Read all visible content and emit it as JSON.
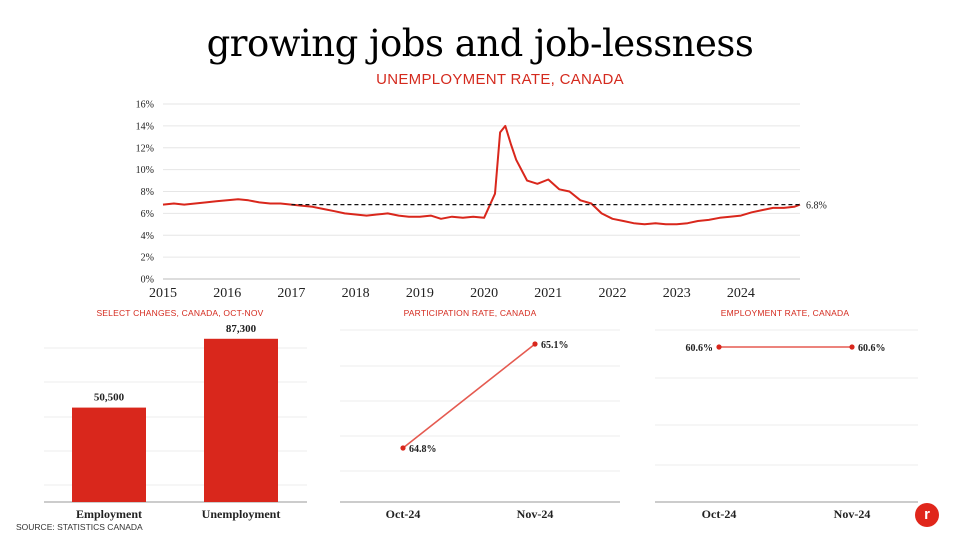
{
  "title": "growing jobs and job-lessness",
  "source": "SOURCE: STATISTICS CANADA",
  "logo_text": "r",
  "colors": {
    "accent": "#d42a1e",
    "line": "#d9271c",
    "bar": "#d9271c",
    "grid": "#e6e6e6"
  },
  "chart_data": [
    {
      "type": "line",
      "title": "UNEMPLOYMENT RATE, CANADA",
      "ylim": [
        0,
        16
      ],
      "yticks": [
        "0%",
        "2%",
        "4%",
        "6%",
        "8%",
        "10%",
        "12%",
        "14%",
        "16%"
      ],
      "ytick_values": [
        0,
        2,
        4,
        6,
        8,
        10,
        12,
        14,
        16
      ],
      "xticks": [
        "2015",
        "2016",
        "2017",
        "2018",
        "2019",
        "2020",
        "2021",
        "2022",
        "2023",
        "2024"
      ],
      "xtick_values": [
        2015,
        2016,
        2017,
        2018,
        2019,
        2020,
        2021,
        2022,
        2023,
        2024
      ],
      "xlim": [
        2015,
        2024.92
      ],
      "x": [
        2015.0,
        2015.17,
        2015.33,
        2015.5,
        2015.67,
        2015.83,
        2016.0,
        2016.17,
        2016.33,
        2016.5,
        2016.67,
        2016.83,
        2017.0,
        2017.17,
        2017.33,
        2017.5,
        2017.67,
        2017.83,
        2018.0,
        2018.17,
        2018.33,
        2018.5,
        2018.67,
        2018.83,
        2019.0,
        2019.17,
        2019.33,
        2019.5,
        2019.67,
        2019.83,
        2020.0,
        2020.17,
        2020.25,
        2020.33,
        2020.42,
        2020.5,
        2020.67,
        2020.83,
        2021.0,
        2021.17,
        2021.33,
        2021.5,
        2021.67,
        2021.83,
        2022.0,
        2022.17,
        2022.33,
        2022.5,
        2022.67,
        2022.83,
        2023.0,
        2023.17,
        2023.33,
        2023.5,
        2023.67,
        2023.83,
        2024.0,
        2024.17,
        2024.33,
        2024.5,
        2024.67,
        2024.83,
        2024.92
      ],
      "y": [
        6.8,
        6.9,
        6.8,
        6.9,
        7.0,
        7.1,
        7.2,
        7.3,
        7.2,
        7.0,
        6.9,
        6.9,
        6.8,
        6.7,
        6.6,
        6.4,
        6.2,
        6.0,
        5.9,
        5.8,
        5.9,
        6.0,
        5.8,
        5.7,
        5.7,
        5.8,
        5.5,
        5.7,
        5.6,
        5.7,
        5.6,
        7.8,
        13.4,
        14.0,
        12.3,
        10.9,
        9.0,
        8.7,
        9.1,
        8.2,
        8.0,
        7.2,
        6.9,
        6.0,
        5.5,
        5.3,
        5.1,
        5.0,
        5.1,
        5.0,
        5.0,
        5.1,
        5.3,
        5.4,
        5.6,
        5.7,
        5.8,
        6.1,
        6.3,
        6.5,
        6.5,
        6.6,
        6.8
      ],
      "reference": {
        "value": 6.8,
        "label": "6.8%",
        "from": 2017
      }
    },
    {
      "type": "bar",
      "title": "SELECT CHANGES, CANADA, OCT-NOV",
      "categories": [
        "Employment",
        "Unemployment"
      ],
      "values": [
        50500,
        87300
      ],
      "value_labels": [
        "50,500",
        "87,300"
      ],
      "ylim": [
        0,
        92000
      ]
    },
    {
      "type": "line",
      "title": "PARTICIPATION RATE, CANADA",
      "categories": [
        "Oct-24",
        "Nov-24"
      ],
      "values": [
        64.8,
        65.1
      ],
      "value_labels": [
        "64.8%",
        "65.1%"
      ]
    },
    {
      "type": "line",
      "title": "EMPLOYMENT RATE, CANADA",
      "categories": [
        "Oct-24",
        "Nov-24"
      ],
      "values": [
        60.6,
        60.6
      ],
      "value_labels": [
        "60.6%",
        "60.6%"
      ]
    }
  ]
}
